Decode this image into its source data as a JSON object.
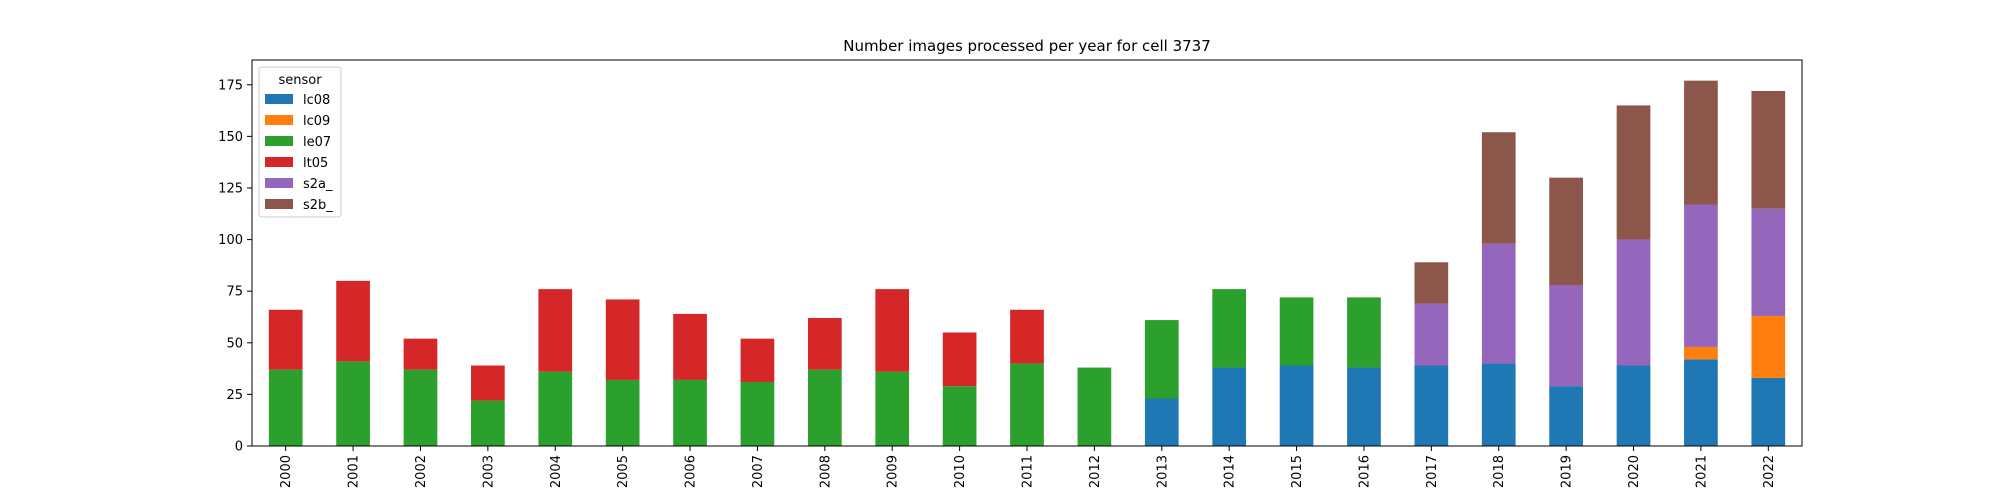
{
  "chart_data": {
    "type": "bar",
    "stacked": true,
    "title": "Number images processed per year for cell 3737",
    "xlabel": "",
    "ylabel": "",
    "ylim": [
      0,
      187
    ],
    "yticks": [
      0,
      25,
      50,
      75,
      100,
      125,
      150,
      175
    ],
    "categories": [
      "2000",
      "2001",
      "2002",
      "2003",
      "2004",
      "2005",
      "2006",
      "2007",
      "2008",
      "2009",
      "2010",
      "2011",
      "2012",
      "2013",
      "2014",
      "2015",
      "2016",
      "2017",
      "2018",
      "2019",
      "2020",
      "2021",
      "2022"
    ],
    "legend": {
      "title": "sensor",
      "position": "top-left"
    },
    "series": [
      {
        "name": "lc08",
        "color": "#1f77b4",
        "values": [
          0,
          0,
          0,
          0,
          0,
          0,
          0,
          0,
          0,
          0,
          0,
          0,
          0,
          23,
          38,
          39,
          38,
          39,
          40,
          29,
          39,
          42,
          33
        ]
      },
      {
        "name": "lc09",
        "color": "#ff7f0e",
        "values": [
          0,
          0,
          0,
          0,
          0,
          0,
          0,
          0,
          0,
          0,
          0,
          0,
          0,
          0,
          0,
          0,
          0,
          0,
          0,
          0,
          0,
          6,
          30
        ]
      },
      {
        "name": "le07",
        "color": "#2ca02c",
        "values": [
          37,
          41,
          37,
          22,
          36,
          32,
          32,
          31,
          37,
          36,
          29,
          40,
          38,
          38,
          38,
          33,
          34,
          0,
          0,
          0,
          0,
          0,
          0
        ]
      },
      {
        "name": "lt05",
        "color": "#d62728",
        "values": [
          29,
          39,
          15,
          17,
          40,
          39,
          32,
          21,
          25,
          40,
          26,
          26,
          0,
          0,
          0,
          0,
          0,
          0,
          0,
          0,
          0,
          0,
          0
        ]
      },
      {
        "name": "s2a_",
        "color": "#9467bd",
        "values": [
          0,
          0,
          0,
          0,
          0,
          0,
          0,
          0,
          0,
          0,
          0,
          0,
          0,
          0,
          0,
          0,
          0,
          30,
          58,
          49,
          61,
          69,
          52
        ]
      },
      {
        "name": "s2b_",
        "color": "#8c564b",
        "values": [
          0,
          0,
          0,
          0,
          0,
          0,
          0,
          0,
          0,
          0,
          0,
          0,
          0,
          0,
          0,
          0,
          0,
          20,
          54,
          52,
          65,
          60,
          57
        ]
      }
    ]
  }
}
